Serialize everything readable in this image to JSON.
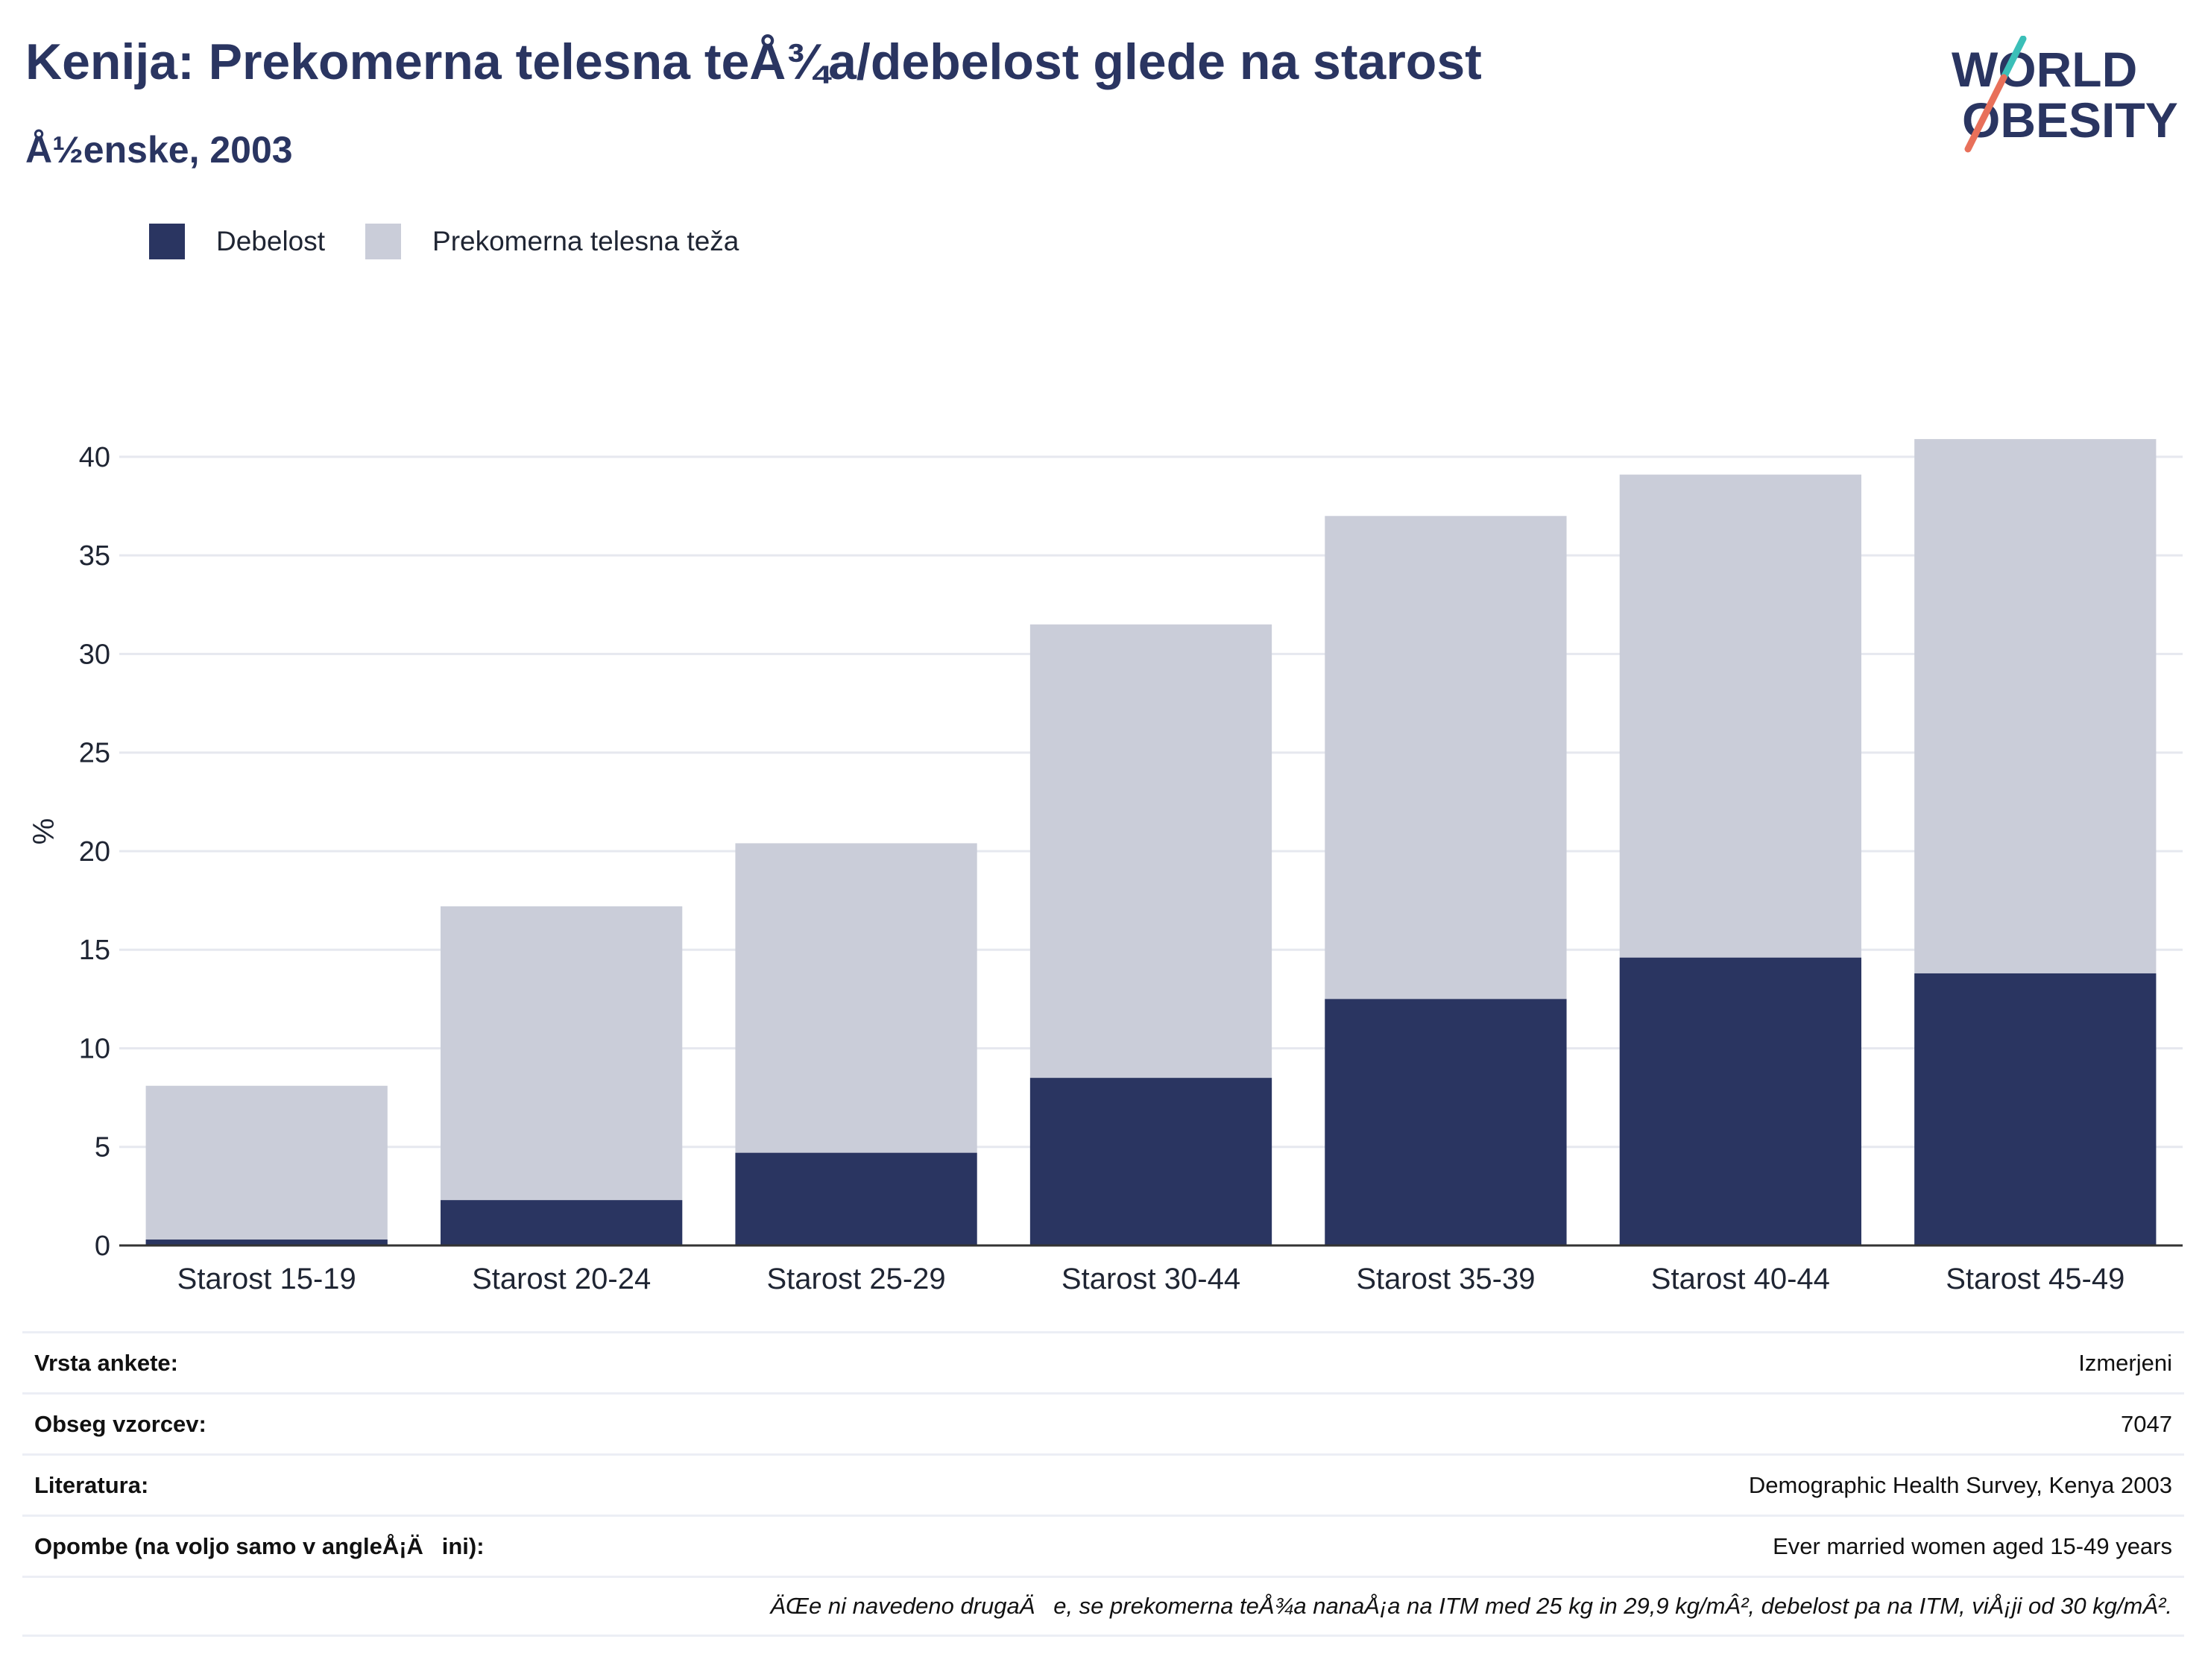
{
  "header": {
    "title": "Kenija: Prekomerna telesna teÅ¾a/debelost glede na starost",
    "subtitle": "Å½enske, 2003"
  },
  "logo": {
    "line1": "WORLD",
    "line2": "OBESITY"
  },
  "legend": [
    {
      "label": "Debelost",
      "color": "#2a3561"
    },
    {
      "label": "Prekomerna telesna teža",
      "color": "#cacdd9"
    }
  ],
  "colors": {
    "obesity": "#2a3561",
    "overweight": "#cacdd9",
    "accent_teal": "#3bbfb8",
    "accent_coral": "#e8705a"
  },
  "chart_data": {
    "type": "bar",
    "stacked": false,
    "overlaid": true,
    "categories": [
      "Starost 15-19",
      "Starost 20-24",
      "Starost 25-29",
      "Starost 30-44",
      "Starost 35-39",
      "Starost 40-44",
      "Starost 45-49"
    ],
    "series": [
      {
        "name": "Prekomerna telesna teža",
        "values": [
          8.1,
          17.2,
          20.4,
          31.5,
          37.0,
          39.1,
          40.9
        ]
      },
      {
        "name": "Debelost",
        "values": [
          0.3,
          2.3,
          4.7,
          8.5,
          12.5,
          14.6,
          13.8
        ]
      }
    ],
    "ylabel": "%",
    "ylim": [
      0,
      42
    ],
    "yticks": [
      0,
      5,
      10,
      15,
      20,
      25,
      30,
      35,
      40
    ],
    "grid": true,
    "legend": "top-left"
  },
  "info": [
    {
      "key": "Vrsta ankete:",
      "value": "Izmerjeni"
    },
    {
      "key": "Obseg vzorcev:",
      "value": "7047"
    },
    {
      "key": "Literatura:",
      "value": "Demographic Health Survey, Kenya 2003"
    },
    {
      "key": "Opombe (na voljo samo v angleÅ¡Äini):",
      "value": "Ever married women aged 15-49 years"
    }
  ],
  "footnote": "ÄŒe ni navedeno drugaÄe, se prekomerna teÅ¾a nanaÅ¡a na ITM med 25 kg in 29,9 kg/mÂ², debelost pa na ITM, viÅ¡ji od 30 kg/mÂ²."
}
